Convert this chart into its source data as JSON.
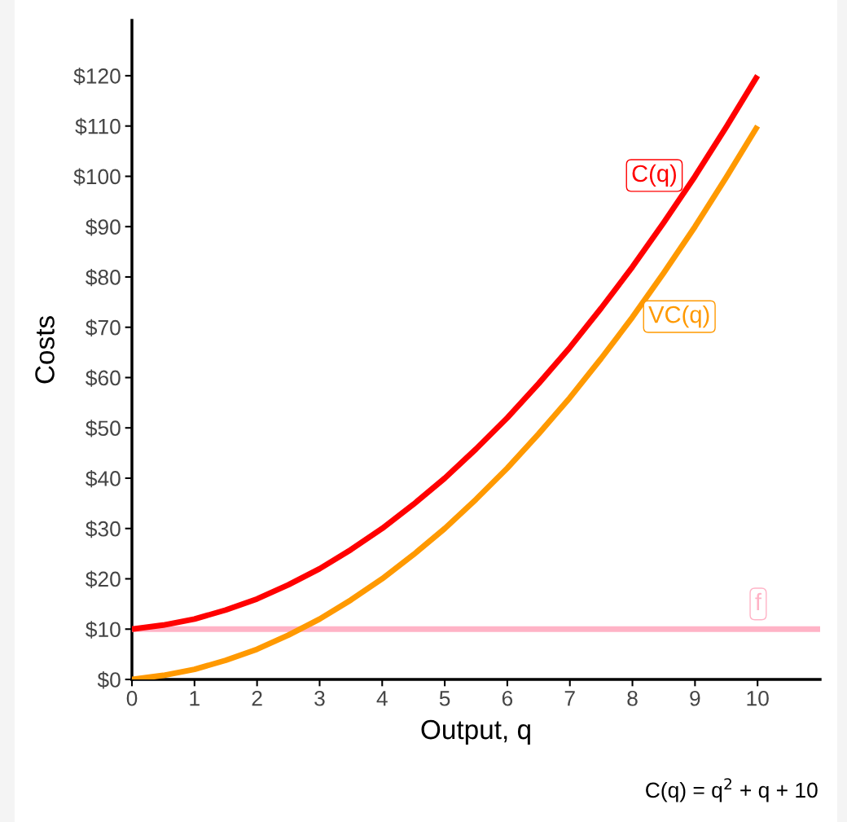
{
  "chart_data": {
    "type": "line",
    "xlabel": "Output, q",
    "ylabel": "Costs",
    "x": [
      0,
      0.5,
      1,
      1.5,
      2,
      2.5,
      3,
      3.5,
      4,
      4.5,
      5,
      5.5,
      6,
      6.5,
      7,
      7.5,
      8,
      8.5,
      9,
      9.5,
      10
    ],
    "series": [
      {
        "name": "C(q)",
        "color": "#ff0000",
        "values": [
          10,
          10.8,
          12,
          13.8,
          16,
          18.8,
          22,
          25.8,
          30,
          34.8,
          40,
          45.8,
          52,
          58.8,
          66,
          73.8,
          82,
          90.8,
          100,
          109.8,
          120
        ]
      },
      {
        "name": "VC(q)",
        "color": "#ff9900",
        "values": [
          0,
          0.8,
          2,
          3.8,
          6,
          8.8,
          12,
          15.8,
          20,
          24.8,
          30,
          35.8,
          42,
          48.8,
          56,
          63.8,
          72,
          80.8,
          90,
          99.8,
          110
        ]
      },
      {
        "name": "f",
        "color": "#ffb3c6",
        "x": [
          0,
          11
        ],
        "values": [
          10,
          10
        ]
      }
    ],
    "xlim": [
      0,
      11
    ],
    "ylim": [
      0,
      131
    ],
    "xticks": [
      0,
      1,
      2,
      3,
      4,
      5,
      6,
      7,
      8,
      9,
      10
    ],
    "yticks": [
      {
        "value": 0,
        "label": "$0"
      },
      {
        "value": 10,
        "label": "$10"
      },
      {
        "value": 20,
        "label": "$20"
      },
      {
        "value": 30,
        "label": "$30"
      },
      {
        "value": 40,
        "label": "$40"
      },
      {
        "value": 50,
        "label": "$50"
      },
      {
        "value": 60,
        "label": "$60"
      },
      {
        "value": 70,
        "label": "$70"
      },
      {
        "value": 80,
        "label": "$80"
      },
      {
        "value": 90,
        "label": "$90"
      },
      {
        "value": 100,
        "label": "$100"
      },
      {
        "value": 110,
        "label": "$110"
      },
      {
        "value": 120,
        "label": "$120"
      }
    ],
    "annotations": [
      "C(q) = q$^{2}$ + q + 10"
    ],
    "grid": false,
    "legend": false,
    "marker": "none",
    "line_style": "solid"
  }
}
